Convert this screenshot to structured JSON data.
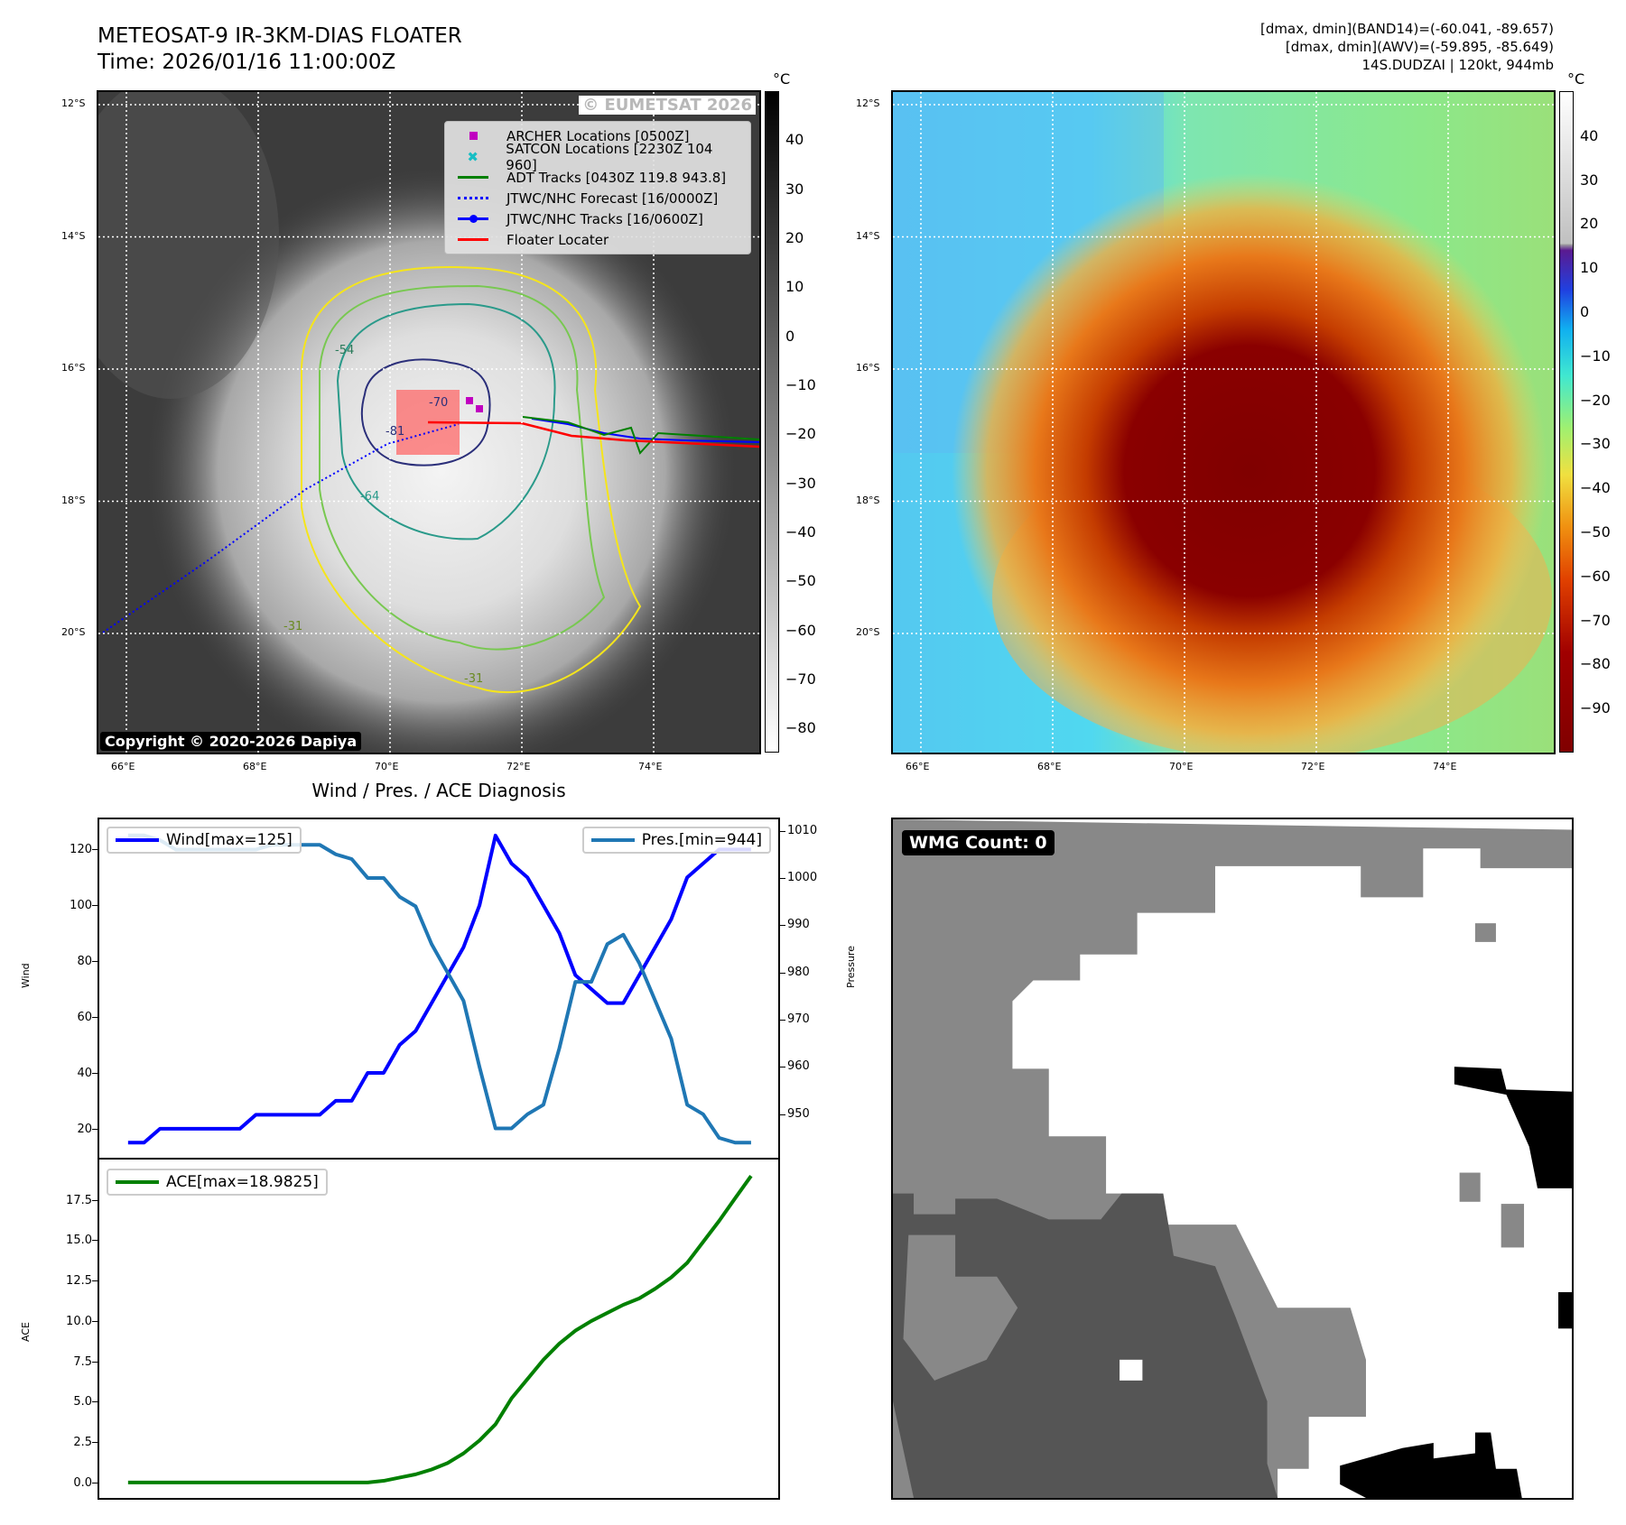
{
  "header": {
    "title_line1": "METEOSAT-9 IR-3KM-DIAS FLOATER",
    "title_line2": "Time: 2026/01/16 11:00:00Z",
    "diag_line1": "[dmax, dmin](BAND14)=(-60.041, -89.657)",
    "diag_line2": "[dmax, dmin](AWV)=(-59.895, -85.649)",
    "diag_line3": "14S.DUDZAI | 120kt, 944mb"
  },
  "map": {
    "lon_ticks": [
      "66°E",
      "68°E",
      "70°E",
      "72°E",
      "74°E"
    ],
    "lat_ticks": [
      "12°S",
      "14°S",
      "16°S",
      "18°S",
      "20°S"
    ],
    "watermark": "© EUMETSAT 2026",
    "copyright": "Copyright © 2020-2026 Dapiya",
    "legend": [
      {
        "label": "ARCHER Locations [0500Z]",
        "color": "#c000c0"
      },
      {
        "label": "SATCON Locations [2230Z 104 960]",
        "color": "#17bec4"
      },
      {
        "label": "ADT Tracks [0430Z 119.8 943.8]",
        "color": "#008000"
      },
      {
        "label": "JTWC/NHC Forecast [16/0000Z]",
        "color": "#0000ff"
      },
      {
        "label": "JTWC/NHC Tracks [16/0600Z]",
        "color": "#0000ff"
      },
      {
        "label": "Floater Locater",
        "color": "#ff0000"
      }
    ],
    "contour_labels": [
      "-70",
      "-81",
      "-64",
      "-54",
      "-31",
      "-31"
    ]
  },
  "colorbars": {
    "unit": "°C",
    "ir_ticks": [
      "40",
      "30",
      "20",
      "10",
      "0",
      "−10",
      "−20",
      "−30",
      "−40",
      "−50",
      "−60",
      "−70",
      "−80"
    ],
    "awv_ticks": [
      "40",
      "30",
      "20",
      "10",
      "0",
      "−10",
      "−20",
      "−30",
      "−40",
      "−50",
      "−60",
      "−70",
      "−80",
      "−90"
    ]
  },
  "wmg": {
    "label": "WMG Count: 0"
  },
  "chart_data": [
    {
      "type": "line",
      "title": "Wind / Pres. / ACE Diagnosis",
      "ylabel": "Wind",
      "y2label": "Pressure",
      "ylim": [
        9.6,
        130.8
      ],
      "y2lim": [
        940.8,
        1012.4
      ],
      "yticks": [
        20,
        40,
        60,
        80,
        100,
        120
      ],
      "y2ticks": [
        950,
        960,
        970,
        980,
        990,
        1000,
        1010
      ],
      "series": [
        {
          "name": "Wind[max=125]",
          "color": "#0000ff",
          "axis": "left",
          "values": [
            15,
            15,
            20,
            20,
            20,
            20,
            20,
            20,
            25,
            25,
            25,
            25,
            25,
            30,
            30,
            40,
            40,
            50,
            55,
            65,
            75,
            85,
            100,
            125,
            115,
            110,
            100,
            90,
            75,
            70,
            65,
            65,
            75,
            85,
            95,
            110,
            115,
            120,
            120,
            120
          ]
        },
        {
          "name": "Pres.[min=944]",
          "color": "#1f77b4",
          "axis": "right",
          "values": [
            1009,
            1009,
            1008,
            1006,
            1006,
            1006,
            1006,
            1006,
            1006,
            1007,
            1007,
            1007,
            1007,
            1005,
            1004,
            1000,
            1000,
            996,
            994,
            986,
            980,
            974,
            960,
            947,
            947,
            950,
            952,
            964,
            978,
            978,
            986,
            988,
            982,
            974,
            966,
            952,
            950,
            945,
            944,
            944
          ]
        }
      ]
    },
    {
      "type": "line",
      "ylabel": "ACE",
      "ylim": [
        -0.96,
        20
      ],
      "yticks": [
        "0.0",
        "2.5",
        "5.0",
        "7.5",
        "10.0",
        "12.5",
        "15.0",
        "17.5"
      ],
      "series": [
        {
          "name": "ACE[max=18.9825]",
          "color": "#008000",
          "values": [
            0,
            0,
            0,
            0,
            0,
            0,
            0,
            0,
            0,
            0,
            0,
            0,
            0,
            0,
            0,
            0,
            0.1,
            0.3,
            0.5,
            0.8,
            1.2,
            1.8,
            2.6,
            3.6,
            5.2,
            6.4,
            7.6,
            8.6,
            9.4,
            10.0,
            10.5,
            11.0,
            11.4,
            12.0,
            12.7,
            13.6,
            14.9,
            16.2,
            17.6,
            18.9825
          ]
        }
      ]
    }
  ]
}
